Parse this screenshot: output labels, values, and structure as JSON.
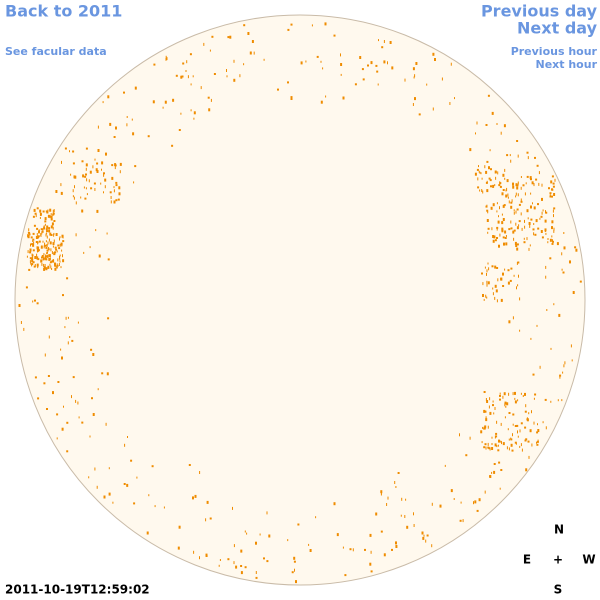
{
  "links": {
    "back": "Back to 2011",
    "facular": "See facular data",
    "previous_day": "Previous day",
    "next_day": "Next day",
    "previous_hour": "Previous hour",
    "next_hour": "Next hour"
  },
  "timestamp": "2011-10-19T12:59:02",
  "compass": {
    "north": "N",
    "east": "E",
    "center": "+",
    "west": "W",
    "south": "S"
  }
}
